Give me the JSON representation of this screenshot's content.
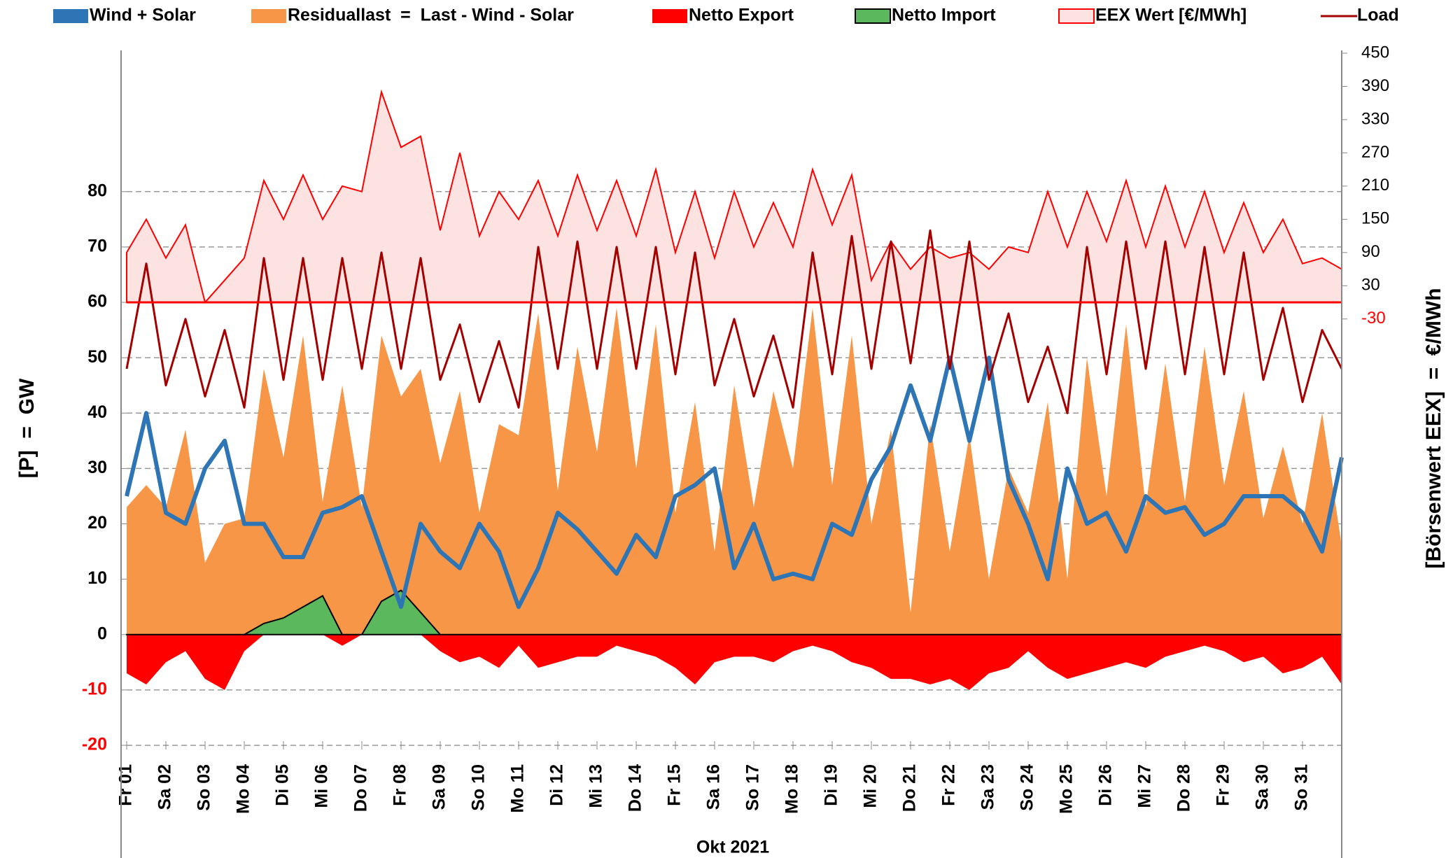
{
  "chart_data": {
    "type": "area",
    "x_label": "Okt 2021",
    "y_label": "[P]  =  GW",
    "y2_label": "[Börsenwert EEX]  =  €/MWh",
    "x": [
      1,
      1.5,
      2,
      2.5,
      3,
      3.5,
      4,
      4.5,
      5,
      5.5,
      6,
      6.5,
      7,
      7.5,
      8,
      8.5,
      9,
      9.5,
      10,
      10.5,
      11,
      11.5,
      12,
      12.5,
      13,
      13.5,
      14,
      14.5,
      15,
      15.5,
      16,
      16.5,
      17,
      17.5,
      18,
      18.5,
      19,
      19.5,
      20,
      20.5,
      21,
      21.5,
      22,
      22.5,
      23,
      23.5,
      24,
      24.5,
      25,
      25.5,
      26,
      26.5,
      27,
      27.5,
      28,
      28.5,
      29,
      29.5,
      30,
      30.5,
      31,
      31.5,
      32
    ],
    "xlim": [
      1,
      32
    ],
    "xticks": [
      {
        "value": 1,
        "label": "Fr 01"
      },
      {
        "value": 2,
        "label": "Sa 02"
      },
      {
        "value": 3,
        "label": "So 03"
      },
      {
        "value": 4,
        "label": "Mo 04"
      },
      {
        "value": 5,
        "label": "Di 05"
      },
      {
        "value": 6,
        "label": "Mi 06"
      },
      {
        "value": 7,
        "label": "Do 07"
      },
      {
        "value": 8,
        "label": "Fr 08"
      },
      {
        "value": 9,
        "label": "Sa 09"
      },
      {
        "value": 10,
        "label": "So 10"
      },
      {
        "value": 11,
        "label": "Mo 11"
      },
      {
        "value": 12,
        "label": "Di 12"
      },
      {
        "value": 13,
        "label": "Mi 13"
      },
      {
        "value": 14,
        "label": "Do 14"
      },
      {
        "value": 15,
        "label": "Fr 15"
      },
      {
        "value": 16,
        "label": "Sa 16"
      },
      {
        "value": 17,
        "label": "So 17"
      },
      {
        "value": 18,
        "label": "Mo 18"
      },
      {
        "value": 19,
        "label": "Di 19"
      },
      {
        "value": 20,
        "label": "Mi 20"
      },
      {
        "value": 21,
        "label": "Do 21"
      },
      {
        "value": 22,
        "label": "Fr 22"
      },
      {
        "value": 23,
        "label": "Sa 23"
      },
      {
        "value": 24,
        "label": "So 24"
      },
      {
        "value": 25,
        "label": "Mo 25"
      },
      {
        "value": 26,
        "label": "Di 26"
      },
      {
        "value": 27,
        "label": "Mi 27"
      },
      {
        "value": 28,
        "label": "Do 28"
      },
      {
        "value": 29,
        "label": "Fr 29"
      },
      {
        "value": 30,
        "label": "Sa 30"
      },
      {
        "value": 31,
        "label": "So 31"
      }
    ],
    "ylim": [
      -20,
      105
    ],
    "yticks": [
      -20,
      -10,
      0,
      10,
      20,
      30,
      40,
      50,
      60,
      70,
      80
    ],
    "y2lim": [
      -800,
      450
    ],
    "y2ticks": [
      -30,
      30,
      90,
      150,
      210,
      270,
      330,
      390,
      450
    ],
    "grid": true,
    "series": [
      {
        "name": "Wind + Solar",
        "kind": "line",
        "color": "#2e75b6",
        "values": [
          25,
          40,
          22,
          20,
          30,
          35,
          20,
          20,
          14,
          14,
          22,
          23,
          25,
          15,
          5,
          20,
          15,
          12,
          20,
          15,
          5,
          12,
          22,
          19,
          15,
          11,
          18,
          14,
          25,
          27,
          30,
          12,
          20,
          10,
          11,
          10,
          20,
          18,
          28,
          34,
          45,
          35,
          50,
          35,
          50,
          28,
          20,
          10,
          30,
          20,
          22,
          15,
          25,
          22,
          23,
          18,
          20,
          25,
          25,
          25,
          22,
          15,
          32
        ]
      },
      {
        "name": "Residuallast  =  Last - Wind - Solar",
        "kind": "area",
        "color": "#f79646",
        "values": [
          23,
          27,
          23,
          37,
          13,
          20,
          21,
          48,
          32,
          54,
          24,
          45,
          23,
          54,
          43,
          48,
          31,
          44,
          22,
          38,
          36,
          58,
          26,
          52,
          33,
          59,
          30,
          56,
          22,
          42,
          15,
          45,
          23,
          44,
          30,
          59,
          27,
          54,
          20,
          37,
          4,
          38,
          15,
          36,
          10,
          30,
          22,
          42,
          10,
          50,
          25,
          56,
          23,
          49,
          24,
          52,
          27,
          44,
          21,
          34,
          20,
          40,
          16
        ]
      },
      {
        "name": "Netto Export",
        "kind": "area",
        "color": "#ff0000",
        "values": [
          -7,
          -9,
          -5,
          -3,
          -8,
          -10,
          -3,
          0,
          0,
          0,
          0,
          -2,
          0,
          0,
          0,
          0,
          -3,
          -5,
          -4,
          -6,
          -2,
          -6,
          -5,
          -4,
          -4,
          -2,
          -3,
          -4,
          -6,
          -9,
          -5,
          -4,
          -4,
          -5,
          -3,
          -2,
          -3,
          -5,
          -6,
          -8,
          -8,
          -9,
          -8,
          -10,
          -7,
          -6,
          -3,
          -6,
          -8,
          -7,
          -6,
          -5,
          -6,
          -4,
          -3,
          -2,
          -3,
          -5,
          -4,
          -7,
          -6,
          -4,
          -9
        ]
      },
      {
        "name": "Netto Import",
        "kind": "area",
        "color": "#5cb85c",
        "stroke": "#000000",
        "values": [
          0,
          0,
          0,
          0,
          0,
          0,
          0,
          2,
          3,
          5,
          7,
          0,
          0,
          6,
          8,
          4,
          0,
          0,
          0,
          0,
          0,
          0,
          0,
          0,
          0,
          0,
          0,
          0,
          0,
          0,
          0,
          0,
          0,
          0,
          0,
          0,
          0,
          0,
          0,
          0,
          0,
          0,
          0,
          0,
          0,
          0,
          0,
          0,
          0,
          0,
          0,
          0,
          0,
          0,
          0,
          0,
          0,
          0,
          0,
          0,
          0,
          0,
          0
        ]
      },
      {
        "name": "EEX Wert [€/MWh]",
        "kind": "area",
        "axis": "y2",
        "color": "#fde2e2",
        "stroke": "#ff0000",
        "values": [
          90,
          150,
          80,
          140,
          0,
          40,
          80,
          220,
          150,
          230,
          150,
          210,
          200,
          380,
          280,
          300,
          130,
          270,
          120,
          200,
          150,
          220,
          120,
          230,
          130,
          220,
          120,
          240,
          90,
          200,
          80,
          200,
          100,
          180,
          100,
          240,
          140,
          230,
          40,
          110,
          60,
          100,
          80,
          90,
          60,
          100,
          90,
          200,
          100,
          200,
          110,
          220,
          100,
          210,
          100,
          200,
          90,
          180,
          90,
          150,
          70,
          80,
          60
        ]
      },
      {
        "name": "Load",
        "kind": "line",
        "color": "#a50000",
        "values": [
          48,
          67,
          45,
          57,
          43,
          55,
          41,
          68,
          46,
          68,
          46,
          68,
          48,
          69,
          48,
          68,
          46,
          56,
          42,
          53,
          41,
          70,
          48,
          71,
          48,
          70,
          48,
          70,
          47,
          69,
          45,
          57,
          43,
          54,
          41,
          69,
          47,
          72,
          48,
          71,
          49,
          73,
          48,
          71,
          46,
          58,
          42,
          52,
          40,
          70,
          47,
          71,
          48,
          71,
          47,
          70,
          47,
          69,
          46,
          59,
          42,
          55,
          48
        ]
      }
    ]
  }
}
